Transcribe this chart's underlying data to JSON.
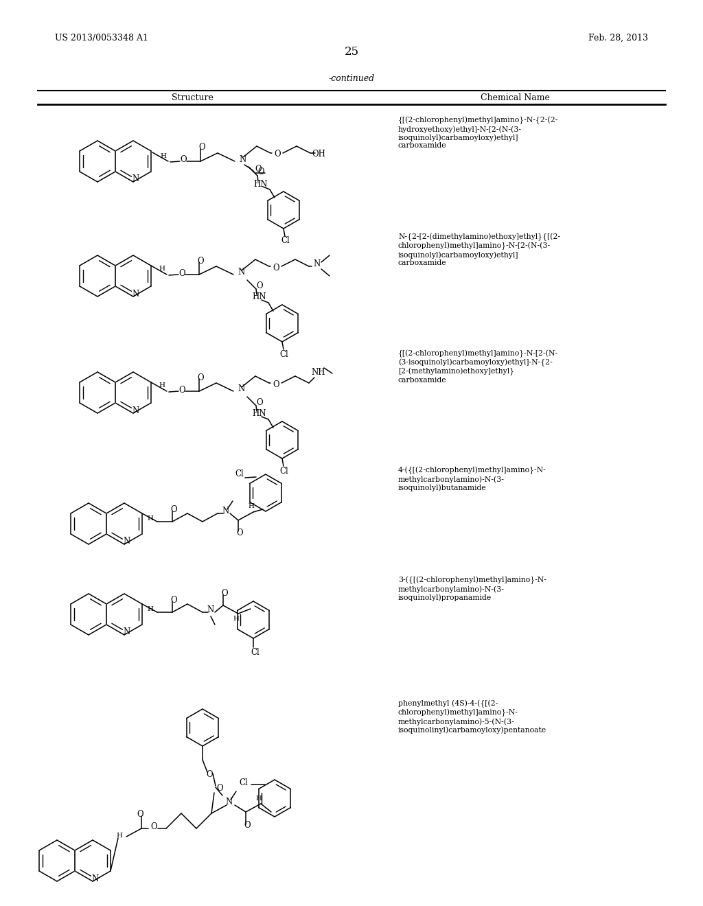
{
  "background_color": "#ffffff",
  "page_number": "25",
  "patent_number": "US 2013/0053348 A1",
  "patent_date": "Feb. 28, 2013",
  "continued_label": "-continued",
  "col1_header": "Structure",
  "col2_header": "Chemical Name",
  "chemical_names": [
    "{[(2-chlorophenyl)methyl]amino}-N-{2-(2-\nhydroxyethoxy)ethyl]-N-[2-(N-(3-\nisoquinolyl)carbamoyloxy)ethyl]\ncarboxamide",
    "N-{2-[2-(dimethylamino)ethoxy]ethyl}{[(2-\nchlorophenyl)methyl]amino}-N-[2-(N-(3-\nisoquinolyl)carbamoyloxy)ethyl]\ncarboxamide",
    "{[(2-chlorophenyl)methyl]amino}-N-[2-(N-\n(3-isoquinolyl)carbamoyloxy)ethyl]-N-{2-\n[2-(methylamino)ethoxy]ethyl}\ncarboxamide",
    "4-({[(2-chlorophenyl)methyl]amino}-N-\nmethylcarbonylamino)-N-(3-\nisoquinolyl)butanamide",
    "3-({[(2-chlorophenyl)methyl]amino}-N-\nmethylcarbonylamino)-N-(3-\nisoquinolyl)propanamide",
    "phenylmethyl (4S)-4-({[(2-\nchlorophenyl)methyl]amino}-N-\nmethylcarbonylamino)-5-(N-(3-\nisoquinolinyl)carbamoyloxy)pentanoate"
  ],
  "name_fontsize": 7.8,
  "font_family": "DejaVu Serif"
}
